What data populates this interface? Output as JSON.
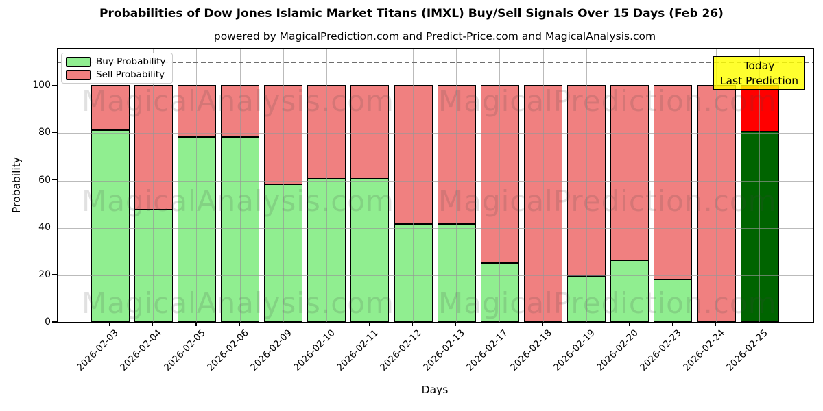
{
  "title": "Probabilities of Dow Jones Islamic Market Titans (IMXL) Buy/Sell Signals Over 15 Days (Feb 26)",
  "subtitle": "powered by MagicalPrediction.com and Predict-Price.com and MagicalAnalysis.com",
  "axes": {
    "xlabel": "Days",
    "ylabel": "Probability",
    "yticks": [
      0,
      20,
      40,
      60,
      80,
      100
    ]
  },
  "legend": [
    {
      "label": "Buy Probability",
      "color": "#90ee90"
    },
    {
      "label": "Sell Probability",
      "color": "#f08080"
    }
  ],
  "annotation": {
    "lines": [
      "Today",
      "Last Prediction"
    ],
    "bg_color": "#ffff00"
  },
  "watermarks": [
    "MagicalAnalysis.com",
    "MagicalPrediction.com"
  ],
  "chart_data": {
    "type": "bar",
    "stacked": true,
    "title": "Probabilities of Dow Jones Islamic Market Titans (IMXL) Buy/Sell Signals Over 15 Days (Feb 26)",
    "xlabel": "Days",
    "ylabel": "Probability",
    "ylim": [
      0,
      115.7
    ],
    "grid": true,
    "legend_position": "upper left",
    "dashed_line_y": 110,
    "categories": [
      "2026-02-03",
      "2026-02-04",
      "2026-02-05",
      "2026-02-06",
      "2026-02-09",
      "2026-02-10",
      "2026-02-11",
      "2026-02-12",
      "2026-02-13",
      "2026-02-17",
      "2026-02-18",
      "2026-02-19",
      "2026-02-20",
      "2026-02-23",
      "2026-02-24",
      "2026-02-25"
    ],
    "series": [
      {
        "name": "Buy Probability",
        "color": "#90ee90",
        "values": [
          81,
          47.5,
          78,
          78,
          58,
          60.5,
          60.5,
          41.5,
          41.5,
          25,
          0,
          19.5,
          26,
          18,
          0,
          80.5
        ]
      },
      {
        "name": "Sell Probability",
        "color": "#f08080",
        "values": [
          19,
          52.5,
          22,
          22,
          42,
          39.5,
          39.5,
          58.5,
          58.5,
          75,
          100,
          80.5,
          74,
          82,
          100,
          19.5
        ]
      }
    ],
    "today_bar": {
      "category": "2026-02-25",
      "buy_color": "#006400",
      "sell_color": "#ff0000"
    }
  }
}
